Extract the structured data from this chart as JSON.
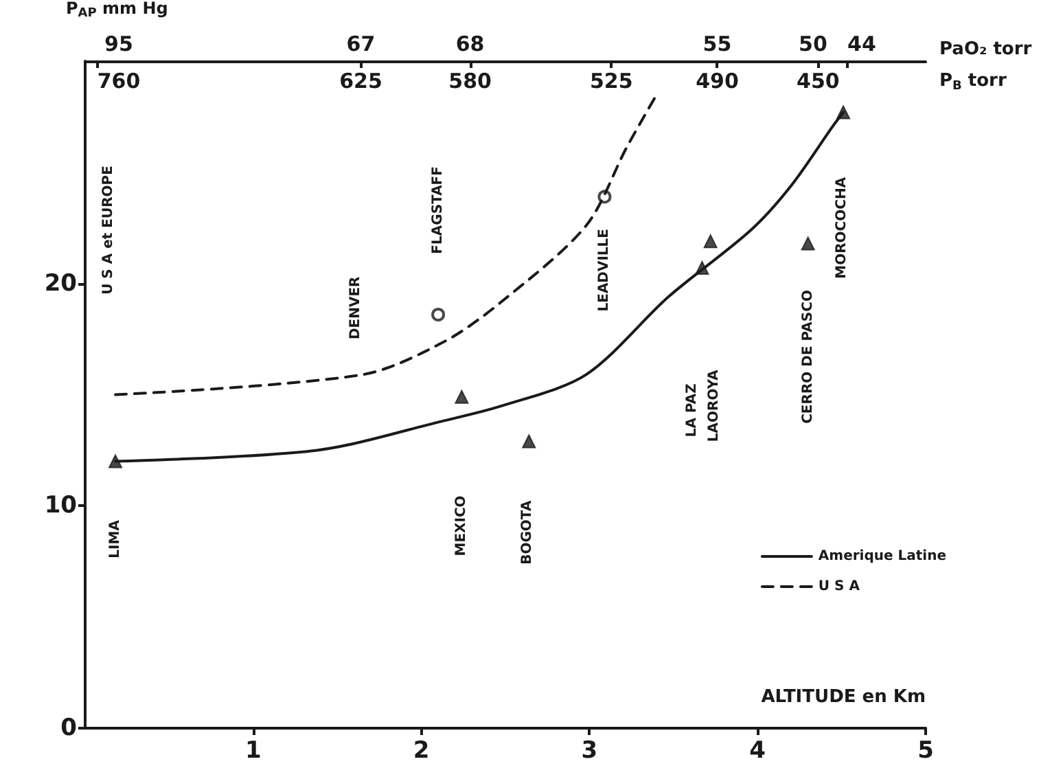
{
  "chart_data": {
    "type": "line",
    "ylabel": "P̄$_{AP}$ mm Hg",
    "xlabel": "ALTITUDE en Km",
    "xlim": [
      0,
      5
    ],
    "xticks": [
      1,
      2,
      3,
      4,
      5
    ],
    "ylim": [
      0,
      30
    ],
    "yticks": [
      0,
      10,
      20
    ],
    "grid": false,
    "legend": "bottom right",
    "series": [
      {
        "name": "Amerique Latine",
        "type": "line",
        "color": "#1a1a1a",
        "line_style": "solid",
        "marker": "none",
        "x": [
          0.18,
          1.38,
          2.12,
          2.48,
          2.98,
          3.47,
          3.96,
          4.2,
          4.45,
          4.51
        ],
        "values": [
          12.0,
          12.5,
          13.8,
          14.5,
          15.9,
          19.4,
          22.4,
          24.4,
          27.1,
          27.7
        ]
      },
      {
        "type": "scatter",
        "color": "#1a1a1a",
        "marker": "triangle",
        "x": [
          0.18,
          2.24,
          2.64,
          3.67,
          3.72,
          4.3,
          4.51
        ],
        "values": [
          12.0,
          14.9,
          12.9,
          20.7,
          21.9,
          21.8,
          27.7
        ]
      },
      {
        "name": "U S A",
        "type": "line",
        "color": "#1a1a1a",
        "line_style": "dashed",
        "marker": "none",
        "x": [
          0.18,
          1.65,
          2.14,
          2.48,
          2.98,
          3.22,
          3.4
        ],
        "values": [
          15.0,
          15.9,
          17.4,
          19.2,
          22.6,
          26.1,
          28.5
        ]
      },
      {
        "type": "scatter",
        "color": "#1a1a1a",
        "marker": "circle",
        "x": [
          2.1,
          3.09
        ],
        "values": [
          18.6,
          23.9
        ]
      }
    ],
    "annotations": [
      "LIMA",
      "U S A et EUROPE",
      "DENVER",
      "FLAGSTAFF",
      "MEXICO",
      "BOGOTA",
      "LEADVILLE",
      "LA PAZ",
      "LAOROYA",
      "CERRO DE PASCO",
      "MOROCOCHA",
      "95",
      "67",
      "68",
      "55",
      "50",
      "44",
      "PaO₂ torr",
      "760",
      "625",
      "580",
      "525",
      "490",
      "450",
      "P$_{B}$ torr"
    ]
  }
}
